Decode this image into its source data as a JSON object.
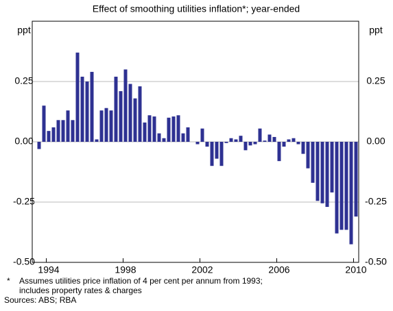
{
  "chart_data": {
    "type": "bar",
    "subtitle": "Effect of smoothing utilities inflation*; year-ended",
    "y_unit_left": "ppt",
    "y_unit_right": "ppt",
    "color": "#2e3192",
    "ylim": [
      -0.5,
      0.5
    ],
    "yticks": [
      {
        "value": -0.5,
        "label": "-0.50"
      },
      {
        "value": -0.25,
        "label": "-0.25"
      },
      {
        "value": 0,
        "label": "0.00"
      },
      {
        "value": 0.25,
        "label": "0.25"
      }
    ],
    "grid": true,
    "categories": [
      null,
      null,
      "1994",
      null,
      null,
      null,
      null,
      null,
      null,
      null,
      null,
      null,
      null,
      null,
      null,
      null,
      null,
      null,
      "1998",
      null,
      null,
      null,
      null,
      null,
      null,
      null,
      null,
      null,
      null,
      null,
      null,
      null,
      null,
      null,
      "2002",
      null,
      null,
      null,
      null,
      null,
      null,
      null,
      null,
      null,
      null,
      null,
      null,
      null,
      null,
      null,
      "2006",
      null,
      null,
      null,
      null,
      null,
      null,
      null,
      null,
      null,
      null,
      null,
      null,
      null,
      null,
      null,
      "2010"
    ],
    "values": [
      -0.03,
      0.15,
      0.045,
      0.06,
      0.09,
      0.09,
      0.13,
      0.09,
      0.37,
      0.27,
      0.25,
      0.29,
      0.01,
      0.13,
      0.14,
      0.13,
      0.27,
      0.21,
      0.3,
      0.24,
      0.18,
      0.23,
      0.08,
      0.11,
      0.105,
      0.035,
      0.015,
      0.1,
      0.105,
      0.11,
      0.035,
      0.06,
      0,
      -0.01,
      0.055,
      -0.02,
      -0.1,
      -0.07,
      -0.1,
      -0.005,
      0.015,
      0.01,
      0.025,
      -0.035,
      -0.015,
      -0.01,
      0.055,
      0.005,
      0.03,
      0.02,
      -0.08,
      -0.02,
      0.01,
      0.015,
      -0.01,
      -0.05,
      -0.11,
      -0.17,
      -0.245,
      -0.255,
      -0.27,
      -0.21,
      -0.38,
      -0.365,
      -0.365,
      -0.425,
      -0.31
    ],
    "footnote_marker": "*",
    "footnote_line1": "Assumes utilities price inflation of 4 per cent per annum from 1993;",
    "footnote_line2": "includes property rates & charges",
    "sources": "Sources: ABS; RBA"
  }
}
